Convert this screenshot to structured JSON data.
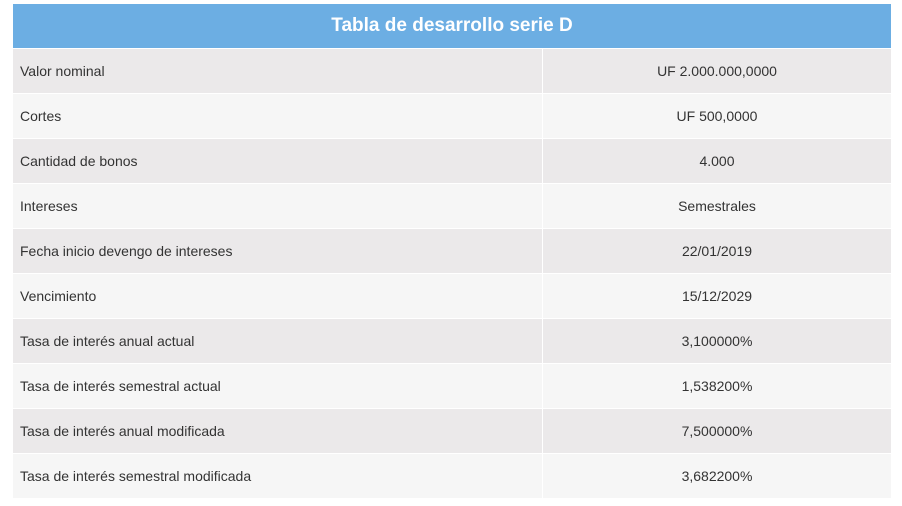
{
  "title": "Tabla de desarrollo serie D",
  "rows": [
    {
      "label": "Valor nominal",
      "value": "UF 2.000.000,0000"
    },
    {
      "label": "Cortes",
      "value": "UF 500,0000"
    },
    {
      "label": "Cantidad de bonos",
      "value": "4.000"
    },
    {
      "label": "Intereses",
      "value": "Semestrales"
    },
    {
      "label": "Fecha inicio devengo de intereses",
      "value": "22/01/2019"
    },
    {
      "label": "Vencimiento",
      "value": "15/12/2029"
    },
    {
      "label": "Tasa de interés anual actual",
      "value": "3,100000%"
    },
    {
      "label": "Tasa de interés semestral actual",
      "value": "1,538200%"
    },
    {
      "label": "Tasa de interés anual modificada",
      "value": "7,500000%"
    },
    {
      "label": "Tasa de interés semestral modificada",
      "value": "3,682200%"
    }
  ]
}
